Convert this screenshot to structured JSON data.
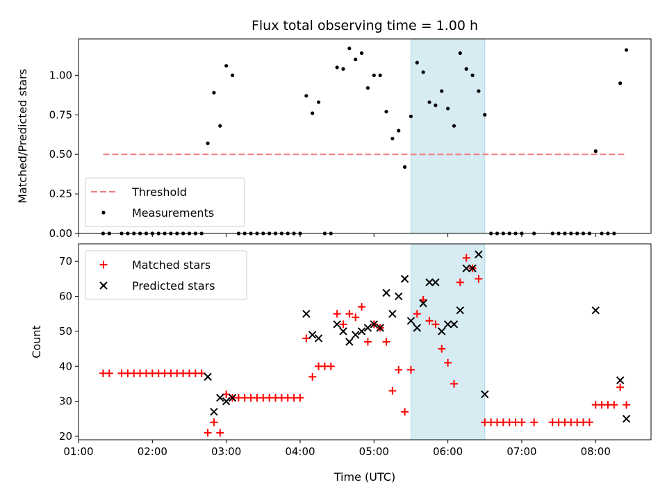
{
  "chart_data": [
    {
      "type": "scatter",
      "title": "Flux total observing time = 1.00 h",
      "ylabel": "Matched/Predicted stars",
      "xlabel": "",
      "xlim": [
        "01:00",
        "08:45"
      ],
      "ylim": [
        0,
        1.23
      ],
      "yticks": [
        "0.00",
        "0.25",
        "0.50",
        "0.75",
        "1.00"
      ],
      "legend_placement": "lower-left",
      "shaded_region": {
        "start": "05:30",
        "end": "06:30",
        "color": "#add8e6"
      },
      "threshold": {
        "name": "Threshold",
        "value": 0.5,
        "start": "01:20",
        "end": "08:25",
        "color": "#f08080"
      },
      "series": [
        {
          "name": "Measurements",
          "color": "#000000",
          "points": [
            [
              "01:20",
              0
            ],
            [
              "01:25",
              0
            ],
            [
              "01:35",
              0
            ],
            [
              "01:40",
              0
            ],
            [
              "01:45",
              0
            ],
            [
              "01:50",
              0
            ],
            [
              "01:55",
              0
            ],
            [
              "02:00",
              0
            ],
            [
              "02:05",
              0
            ],
            [
              "02:10",
              0
            ],
            [
              "02:15",
              0
            ],
            [
              "02:20",
              0
            ],
            [
              "02:25",
              0
            ],
            [
              "02:30",
              0
            ],
            [
              "02:35",
              0
            ],
            [
              "02:40",
              0
            ],
            [
              "02:45",
              0.57
            ],
            [
              "02:50",
              0.89
            ],
            [
              "02:55",
              0.68
            ],
            [
              "03:00",
              1.06
            ],
            [
              "03:05",
              1.0
            ],
            [
              "03:10",
              0
            ],
            [
              "03:15",
              0
            ],
            [
              "03:20",
              0
            ],
            [
              "03:25",
              0
            ],
            [
              "03:30",
              0
            ],
            [
              "03:35",
              0
            ],
            [
              "03:40",
              0
            ],
            [
              "03:45",
              0
            ],
            [
              "03:50",
              0
            ],
            [
              "03:55",
              0
            ],
            [
              "04:00",
              0
            ],
            [
              "04:05",
              0.87
            ],
            [
              "04:10",
              0.76
            ],
            [
              "04:15",
              0.83
            ],
            [
              "04:20",
              0
            ],
            [
              "04:25",
              0
            ],
            [
              "04:30",
              1.05
            ],
            [
              "04:35",
              1.04
            ],
            [
              "04:40",
              1.17
            ],
            [
              "04:45",
              1.1
            ],
            [
              "04:50",
              1.14
            ],
            [
              "04:55",
              0.92
            ],
            [
              "05:00",
              1.0
            ],
            [
              "05:05",
              1.0
            ],
            [
              "05:10",
              0.77
            ],
            [
              "05:15",
              0.6
            ],
            [
              "05:20",
              0.65
            ],
            [
              "05:25",
              0.42
            ],
            [
              "05:30",
              0.74
            ],
            [
              "05:35",
              1.08
            ],
            [
              "05:40",
              1.02
            ],
            [
              "05:45",
              0.83
            ],
            [
              "05:50",
              0.81
            ],
            [
              "05:55",
              0.9
            ],
            [
              "06:00",
              0.79
            ],
            [
              "06:05",
              0.68
            ],
            [
              "06:10",
              1.14
            ],
            [
              "06:15",
              1.04
            ],
            [
              "06:20",
              1.0
            ],
            [
              "06:25",
              0.9
            ],
            [
              "06:30",
              0.75
            ],
            [
              "06:35",
              0
            ],
            [
              "06:40",
              0
            ],
            [
              "06:45",
              0
            ],
            [
              "06:50",
              0
            ],
            [
              "06:55",
              0
            ],
            [
              "07:00",
              0
            ],
            [
              "07:10",
              0
            ],
            [
              "07:25",
              0
            ],
            [
              "07:30",
              0
            ],
            [
              "07:35",
              0
            ],
            [
              "07:40",
              0
            ],
            [
              "07:45",
              0
            ],
            [
              "07:50",
              0
            ],
            [
              "07:55",
              0
            ],
            [
              "08:00",
              0.52
            ],
            [
              "08:05",
              0
            ],
            [
              "08:10",
              0
            ],
            [
              "08:15",
              0
            ],
            [
              "08:20",
              0.95
            ],
            [
              "08:25",
              1.16
            ]
          ]
        }
      ]
    },
    {
      "type": "scatter",
      "title": "",
      "ylabel": "Count",
      "xlabel": "Time (UTC)",
      "xlim": [
        "01:00",
        "08:45"
      ],
      "ylim": [
        19,
        75
      ],
      "yticks": [
        "20",
        "30",
        "40",
        "50",
        "60",
        "70"
      ],
      "xticks": [
        "01:00",
        "02:00",
        "03:00",
        "04:00",
        "05:00",
        "06:00",
        "07:00",
        "08:00"
      ],
      "legend_placement": "top-left",
      "shaded_region": {
        "start": "05:30",
        "end": "06:30",
        "color": "#add8e6"
      },
      "series": [
        {
          "name": "Matched stars",
          "marker": "plus",
          "color": "#ff0000",
          "points": [
            [
              "01:20",
              38
            ],
            [
              "01:25",
              38
            ],
            [
              "01:35",
              38
            ],
            [
              "01:40",
              38
            ],
            [
              "01:45",
              38
            ],
            [
              "01:50",
              38
            ],
            [
              "01:55",
              38
            ],
            [
              "02:00",
              38
            ],
            [
              "02:05",
              38
            ],
            [
              "02:10",
              38
            ],
            [
              "02:15",
              38
            ],
            [
              "02:20",
              38
            ],
            [
              "02:25",
              38
            ],
            [
              "02:30",
              38
            ],
            [
              "02:35",
              38
            ],
            [
              "02:40",
              38
            ],
            [
              "02:45",
              21
            ],
            [
              "02:50",
              24
            ],
            [
              "02:55",
              21
            ],
            [
              "03:00",
              32
            ],
            [
              "03:05",
              31
            ],
            [
              "03:10",
              31
            ],
            [
              "03:15",
              31
            ],
            [
              "03:20",
              31
            ],
            [
              "03:25",
              31
            ],
            [
              "03:30",
              31
            ],
            [
              "03:35",
              31
            ],
            [
              "03:40",
              31
            ],
            [
              "03:45",
              31
            ],
            [
              "03:50",
              31
            ],
            [
              "03:55",
              31
            ],
            [
              "04:00",
              31
            ],
            [
              "04:05",
              48
            ],
            [
              "04:10",
              37
            ],
            [
              "04:15",
              40
            ],
            [
              "04:20",
              40
            ],
            [
              "04:25",
              40
            ],
            [
              "04:30",
              55
            ],
            [
              "04:35",
              52
            ],
            [
              "04:40",
              55
            ],
            [
              "04:45",
              54
            ],
            [
              "04:50",
              57
            ],
            [
              "04:55",
              47
            ],
            [
              "05:00",
              52
            ],
            [
              "05:05",
              51
            ],
            [
              "05:10",
              47
            ],
            [
              "05:15",
              33
            ],
            [
              "05:20",
              39
            ],
            [
              "05:25",
              27
            ],
            [
              "05:30",
              39
            ],
            [
              "05:35",
              55
            ],
            [
              "05:40",
              59
            ],
            [
              "05:45",
              53
            ],
            [
              "05:50",
              52
            ],
            [
              "05:55",
              45
            ],
            [
              "06:00",
              41
            ],
            [
              "06:05",
              35
            ],
            [
              "06:10",
              64
            ],
            [
              "06:15",
              71
            ],
            [
              "06:20",
              68
            ],
            [
              "06:25",
              65
            ],
            [
              "06:30",
              24
            ],
            [
              "06:35",
              24
            ],
            [
              "06:40",
              24
            ],
            [
              "06:45",
              24
            ],
            [
              "06:50",
              24
            ],
            [
              "06:55",
              24
            ],
            [
              "07:00",
              24
            ],
            [
              "07:10",
              24
            ],
            [
              "07:25",
              24
            ],
            [
              "07:30",
              24
            ],
            [
              "07:35",
              24
            ],
            [
              "07:40",
              24
            ],
            [
              "07:45",
              24
            ],
            [
              "07:50",
              24
            ],
            [
              "07:55",
              24
            ],
            [
              "08:00",
              29
            ],
            [
              "08:05",
              29
            ],
            [
              "08:10",
              29
            ],
            [
              "08:15",
              29
            ],
            [
              "08:20",
              34
            ],
            [
              "08:25",
              29
            ]
          ]
        },
        {
          "name": "Predicted stars",
          "marker": "x",
          "color": "#000000",
          "points": [
            [
              "02:45",
              37
            ],
            [
              "02:50",
              27
            ],
            [
              "02:55",
              31
            ],
            [
              "03:00",
              30
            ],
            [
              "03:05",
              31
            ],
            [
              "04:05",
              55
            ],
            [
              "04:10",
              49
            ],
            [
              "04:15",
              48
            ],
            [
              "04:30",
              52
            ],
            [
              "04:35",
              50
            ],
            [
              "04:40",
              47
            ],
            [
              "04:45",
              49
            ],
            [
              "04:50",
              50
            ],
            [
              "04:55",
              51
            ],
            [
              "05:00",
              52
            ],
            [
              "05:05",
              51
            ],
            [
              "05:10",
              61
            ],
            [
              "05:15",
              55
            ],
            [
              "05:20",
              60
            ],
            [
              "05:25",
              65
            ],
            [
              "05:30",
              53
            ],
            [
              "05:35",
              51
            ],
            [
              "05:40",
              58
            ],
            [
              "05:45",
              64
            ],
            [
              "05:50",
              64
            ],
            [
              "05:55",
              50
            ],
            [
              "06:00",
              52
            ],
            [
              "06:05",
              52
            ],
            [
              "06:10",
              56
            ],
            [
              "06:15",
              68
            ],
            [
              "06:20",
              68
            ],
            [
              "06:25",
              72
            ],
            [
              "06:30",
              32
            ],
            [
              "08:00",
              56
            ],
            [
              "08:20",
              36
            ],
            [
              "08:25",
              25
            ]
          ]
        }
      ]
    }
  ]
}
